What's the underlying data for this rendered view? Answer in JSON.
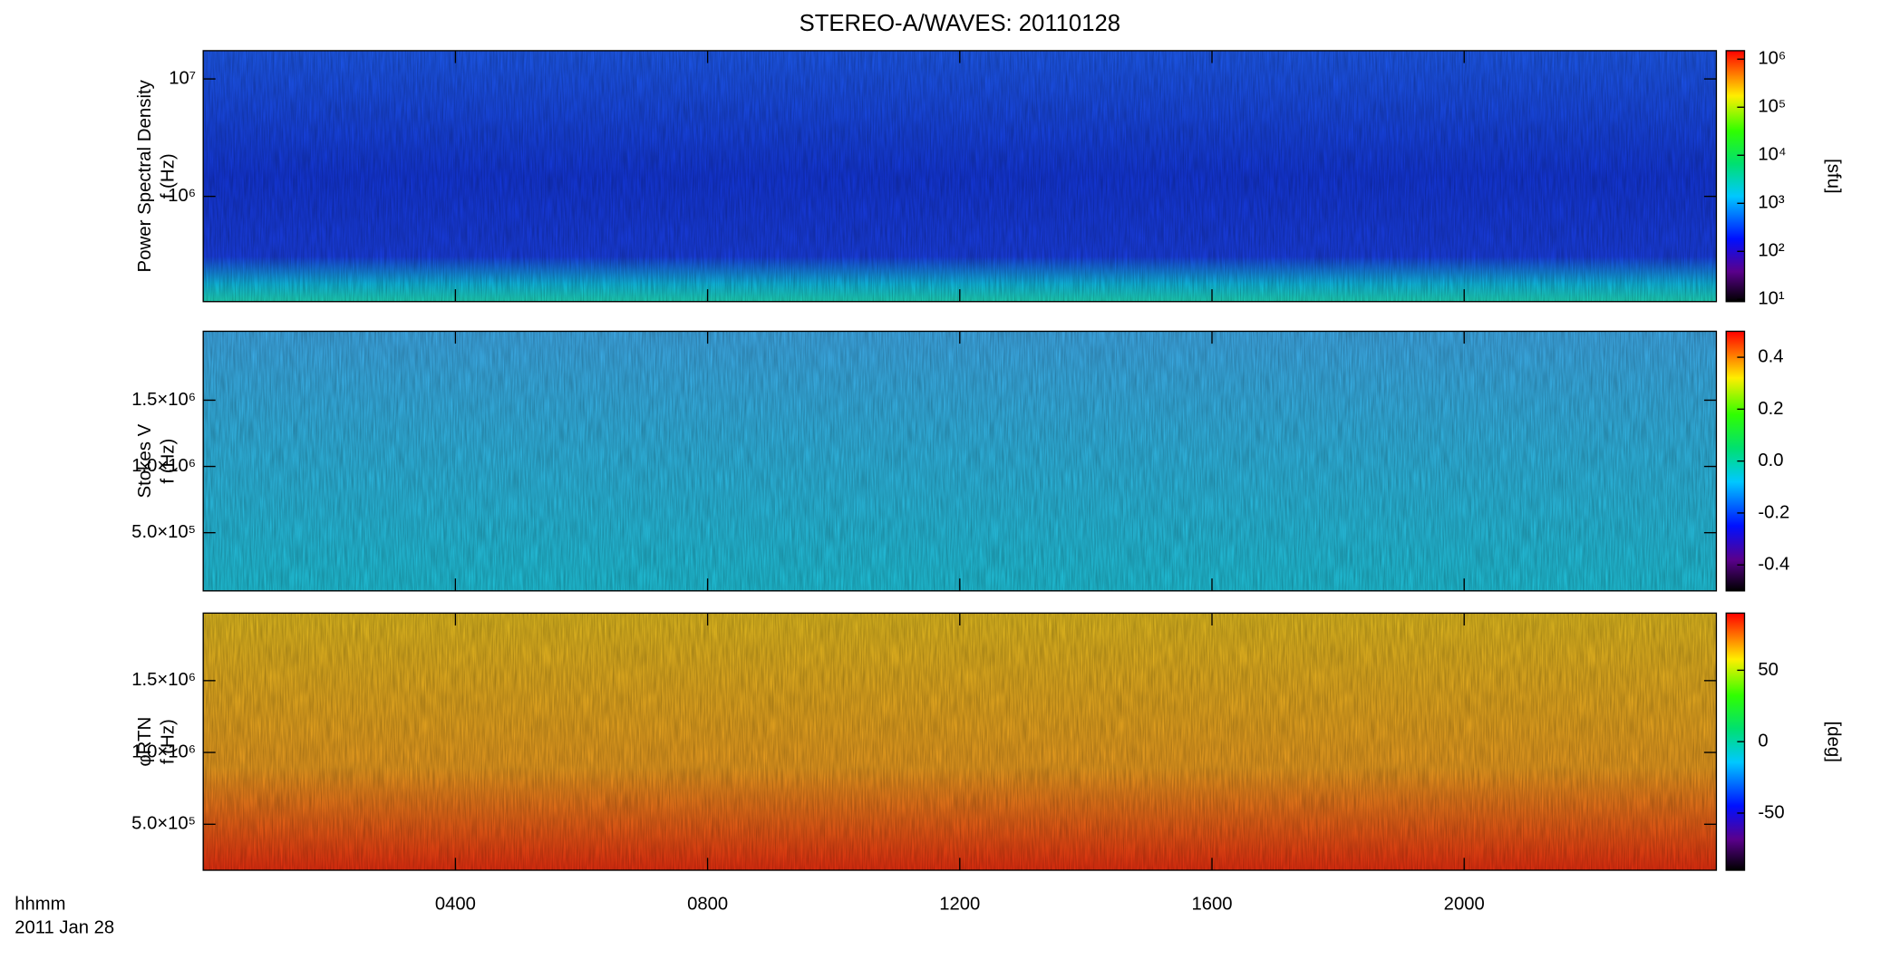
{
  "chart_data": [
    {
      "type": "heatmap",
      "title": "STEREO-A/WAVES: 20110128",
      "ylabel": [
        "Power Spectral Density",
        "f (Hz)"
      ],
      "yscale": "log",
      "ylim": [
        127000,
        17400000
      ],
      "yticks": [
        {
          "value": 1000000,
          "label": "10⁶"
        },
        {
          "value": 10000000,
          "label": "10⁷"
        }
      ],
      "xlim": [
        0,
        24
      ],
      "colorbar": {
        "label": "[sfu]",
        "scale": "log",
        "lim": [
          9,
          1500000
        ],
        "ticks": [
          {
            "value": 10,
            "label": "10¹"
          },
          {
            "value": 100,
            "label": "10²"
          },
          {
            "value": 1000,
            "label": "10³"
          },
          {
            "value": 10000,
            "label": "10⁴"
          },
          {
            "value": 100000,
            "label": "10⁵"
          },
          {
            "value": 1000000,
            "label": "10⁶"
          }
        ]
      }
    },
    {
      "type": "heatmap",
      "ylabel": [
        "Stokes V",
        "f (Hz)"
      ],
      "yscale": "linear",
      "ylim": [
        61000,
        2020000
      ],
      "yticks": [
        {
          "value": 500000,
          "label": "5.0×10⁵"
        },
        {
          "value": 1000000,
          "label": "1.0×10⁶"
        },
        {
          "value": 1500000,
          "label": "1.5×10⁶"
        }
      ],
      "xlim": [
        0,
        24
      ],
      "colorbar": {
        "scale": "linear",
        "lim": [
          -0.5,
          0.5
        ],
        "ticks": [
          {
            "value": -0.4,
            "label": "-0.4"
          },
          {
            "value": -0.2,
            "label": "-0.2"
          },
          {
            "value": 0,
            "label": "0.0"
          },
          {
            "value": 0.2,
            "label": "0.2"
          },
          {
            "value": 0.4,
            "label": "0.4"
          }
        ]
      }
    },
    {
      "type": "heatmap",
      "ylabel": [
        "φRTN",
        "f (Hz)"
      ],
      "yscale": "linear",
      "ylim": [
        180000,
        1970000
      ],
      "yticks": [
        {
          "value": 500000,
          "label": "5.0×10⁵"
        },
        {
          "value": 1000000,
          "label": "1.0×10⁶"
        },
        {
          "value": 1500000,
          "label": "1.5×10⁶"
        }
      ],
      "xlim": [
        0,
        24
      ],
      "xticks": [
        {
          "value": 4,
          "label": "0400"
        },
        {
          "value": 8,
          "label": "0800"
        },
        {
          "value": 12,
          "label": "1200"
        },
        {
          "value": 16,
          "label": "1600"
        },
        {
          "value": 20,
          "label": "2000"
        }
      ],
      "xlabel": "hhmm",
      "date": "2011 Jan 28",
      "colorbar": {
        "label": "[deg]",
        "scale": "linear",
        "lim": [
          -90,
          90
        ],
        "ticks": [
          -50,
          0,
          50
        ]
      }
    }
  ]
}
